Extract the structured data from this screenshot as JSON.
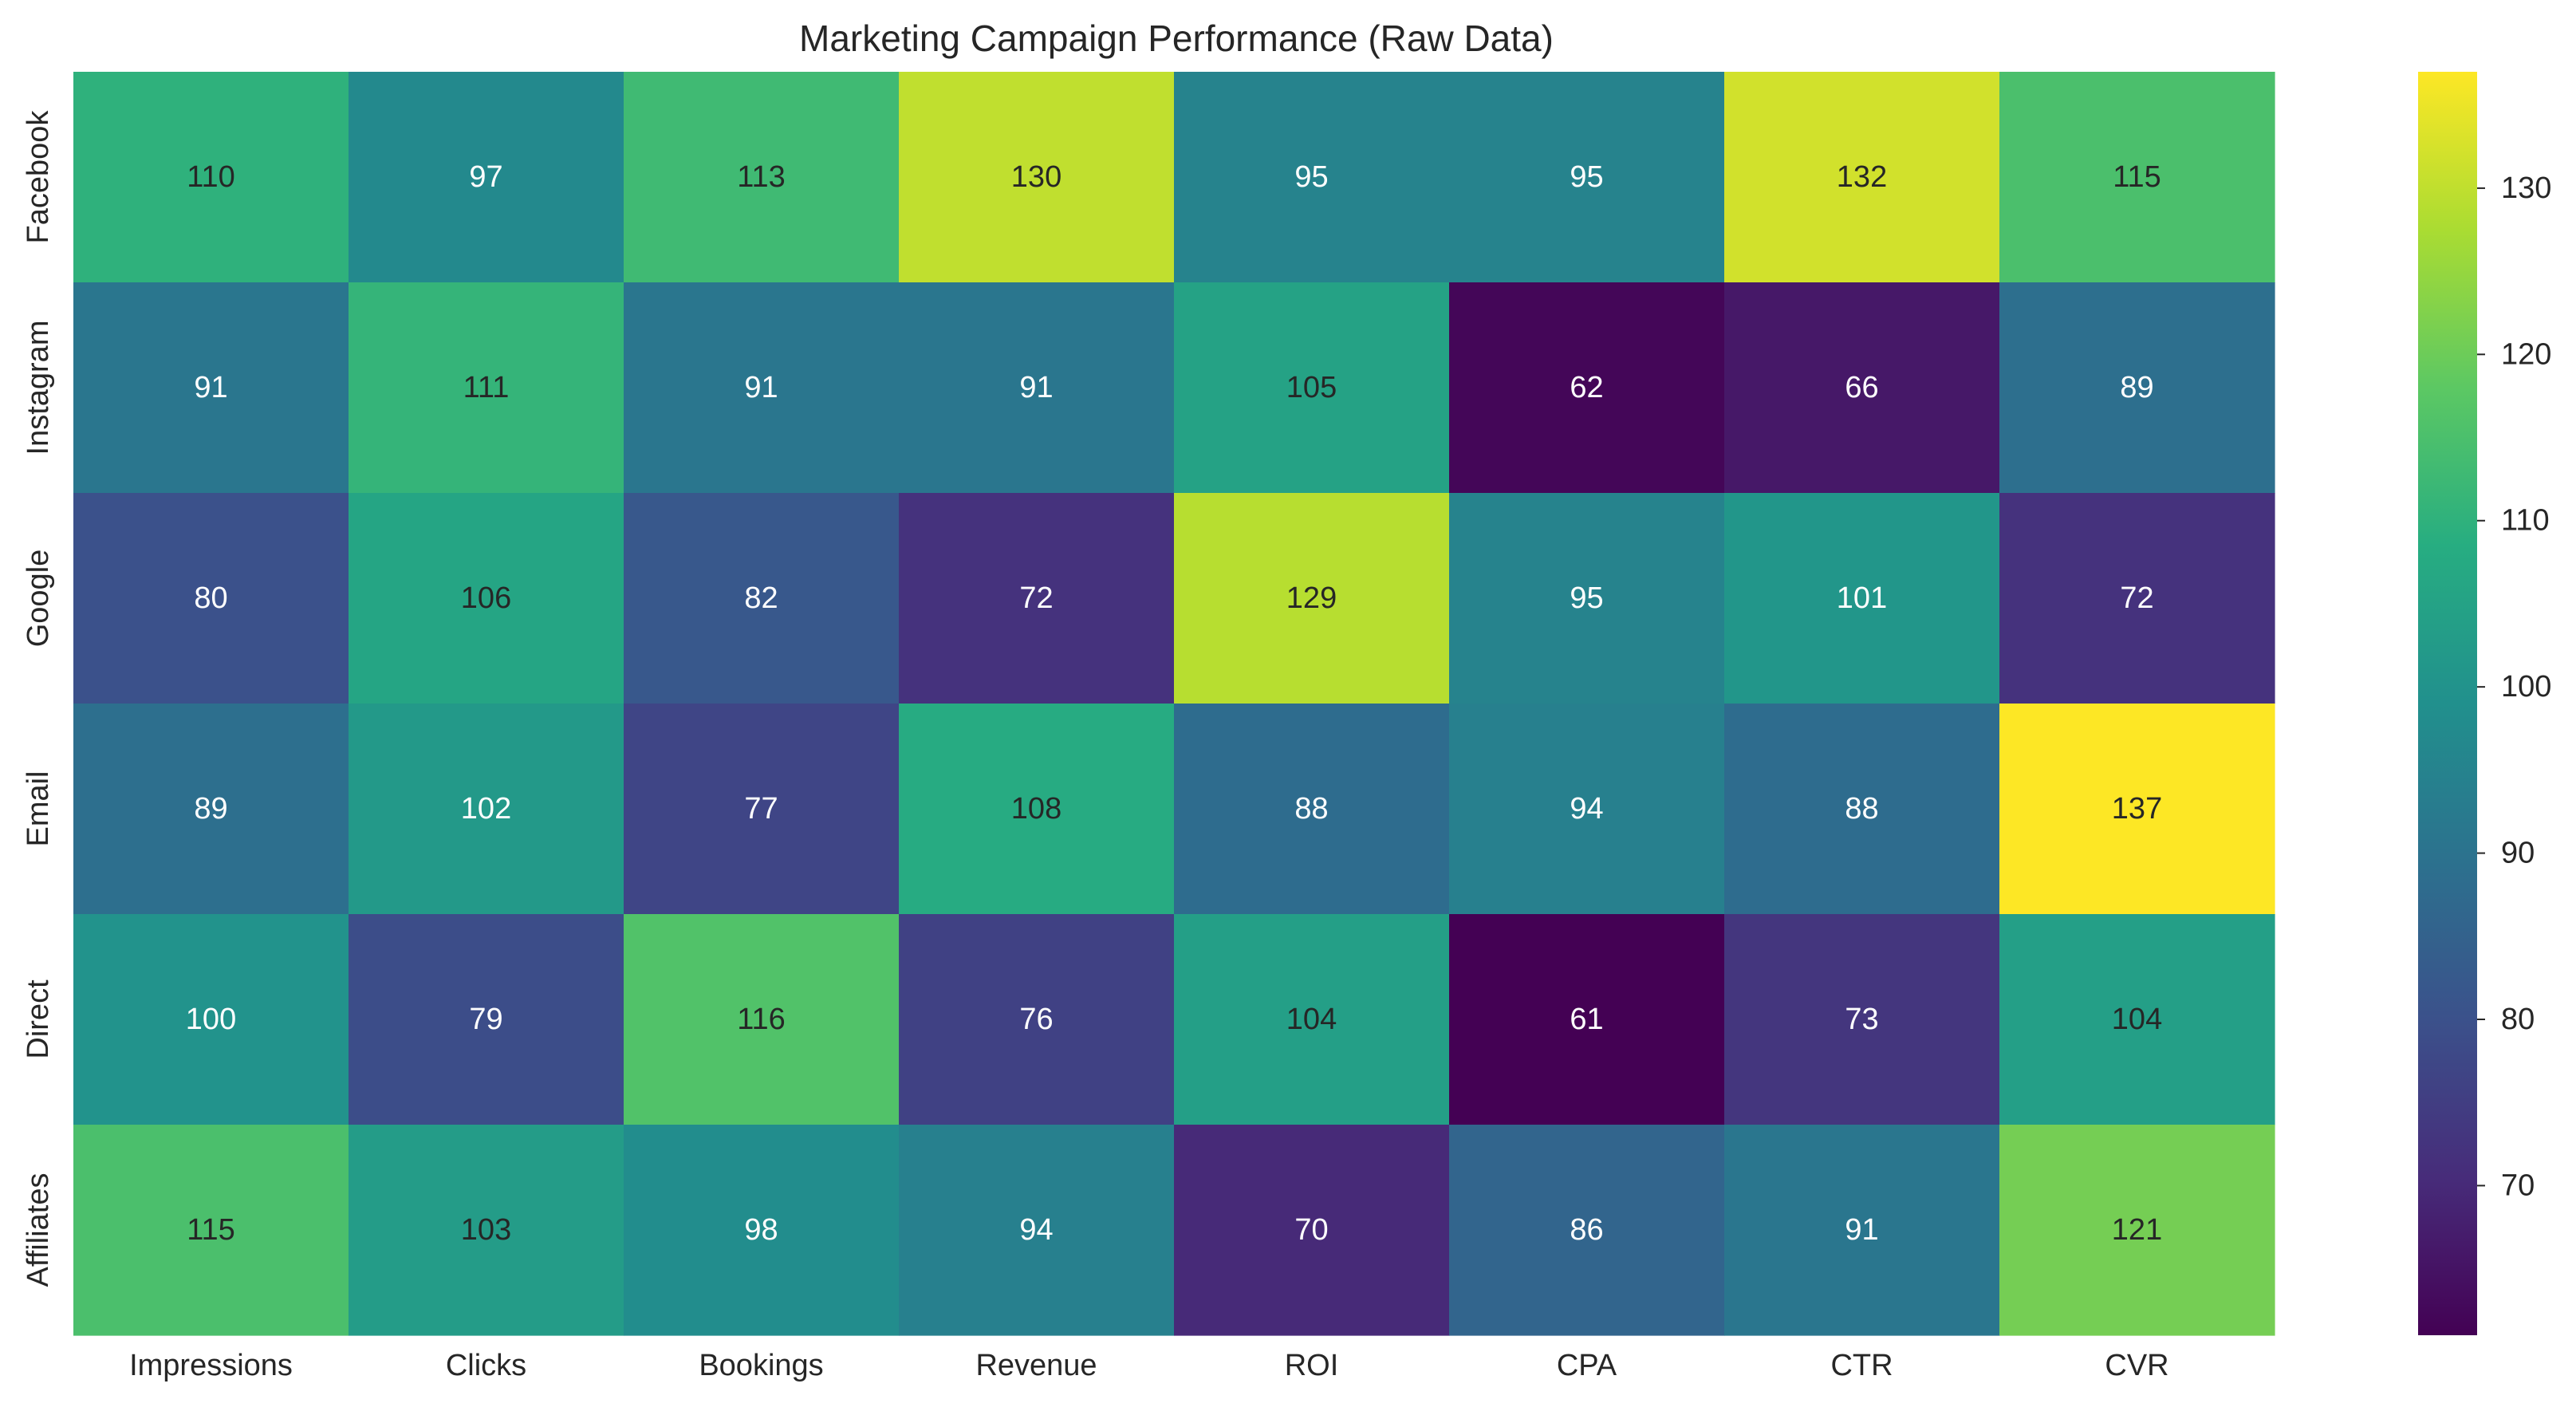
{
  "chart_data": {
    "type": "heatmap",
    "title": "Marketing Campaign Performance (Raw Data)",
    "xlabel": "",
    "ylabel": "",
    "x_categories": [
      "Impressions",
      "Clicks",
      "Bookings",
      "Revenue",
      "ROI",
      "CPA",
      "CTR",
      "CVR"
    ],
    "y_categories": [
      "Facebook",
      "Instagram",
      "Google",
      "Email",
      "Direct",
      "Affiliates"
    ],
    "values": [
      [
        110,
        97,
        113,
        130,
        95,
        95,
        132,
        115
      ],
      [
        91,
        111,
        91,
        91,
        105,
        62,
        66,
        89
      ],
      [
        80,
        106,
        82,
        72,
        129,
        95,
        101,
        72
      ],
      [
        89,
        102,
        77,
        108,
        88,
        94,
        88,
        137
      ],
      [
        100,
        79,
        116,
        76,
        104,
        61,
        73,
        104
      ],
      [
        115,
        103,
        98,
        94,
        70,
        86,
        91,
        121
      ]
    ],
    "colormap": "viridis",
    "color_range": [
      61,
      137
    ],
    "colorbar_ticks": [
      70,
      80,
      90,
      100,
      110,
      120,
      130
    ],
    "annotations": true,
    "grid": false,
    "legend": "colorbar-right"
  }
}
